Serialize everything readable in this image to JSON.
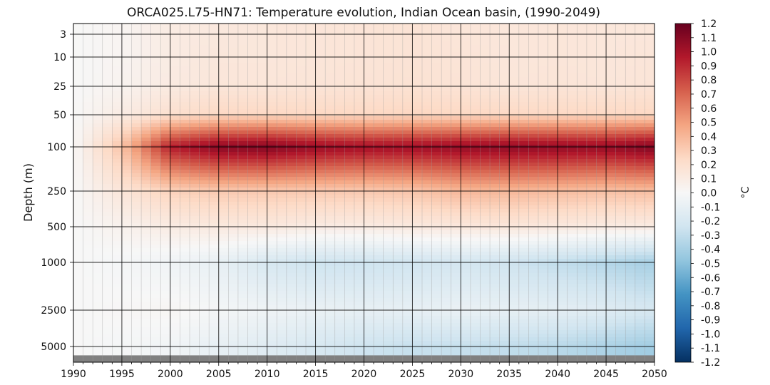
{
  "chart_data": {
    "type": "heatmap",
    "title": "ORCA025.L75-HN71: Temperature evolution, Indian Ocean basin, (1990-2049)",
    "xlabel": "",
    "ylabel": "Depth (m)",
    "xlim": [
      1990,
      2050
    ],
    "x_ticks": [
      1990,
      1995,
      2000,
      2005,
      2010,
      2015,
      2020,
      2025,
      2030,
      2035,
      2040,
      2045,
      2050
    ],
    "y_ticks": [
      3,
      10,
      25,
      50,
      100,
      250,
      500,
      1000,
      2500,
      5000
    ],
    "y_scale": "nonlinear depth (inverted)",
    "grid": true,
    "colorbar": {
      "label": "°C",
      "range": [
        -1.2,
        1.2
      ],
      "ticks": [
        "1.2",
        "1.1",
        "1.0",
        "0.9",
        "0.8",
        "0.7",
        "0.6",
        "0.5",
        "0.4",
        "0.3",
        "0.2",
        "0.1",
        "0.0",
        "-0.1",
        "-0.2",
        "-0.3",
        "-0.4",
        "-0.5",
        "-0.6",
        "-0.7",
        "-0.8",
        "-0.9",
        "-1.0",
        "-1.1",
        "-1.2"
      ],
      "colormap": "RdBu_r"
    },
    "years": [
      1990,
      1995,
      2000,
      2005,
      2010,
      2015,
      2020,
      2025,
      2030,
      2035,
      2040,
      2045,
      2049
    ],
    "depths": [
      3,
      10,
      25,
      50,
      100,
      250,
      500,
      1000,
      2500,
      5000
    ],
    "values": [
      [
        0.0,
        0.03,
        0.1,
        0.13,
        0.14,
        0.15,
        0.16,
        0.17,
        0.15,
        0.14,
        0.15,
        0.14,
        0.14
      ],
      [
        0.0,
        0.03,
        0.1,
        0.14,
        0.14,
        0.15,
        0.16,
        0.17,
        0.16,
        0.14,
        0.15,
        0.14,
        0.15
      ],
      [
        0.0,
        0.04,
        0.11,
        0.15,
        0.15,
        0.16,
        0.17,
        0.18,
        0.17,
        0.15,
        0.16,
        0.15,
        0.16
      ],
      [
        0.0,
        0.1,
        0.2,
        0.25,
        0.25,
        0.25,
        0.25,
        0.26,
        0.25,
        0.25,
        0.25,
        0.25,
        0.25
      ],
      [
        0.0,
        0.35,
        0.95,
        1.1,
        1.12,
        1.05,
        1.02,
        1.03,
        1.06,
        1.08,
        1.07,
        1.06,
        1.12
      ],
      [
        0.0,
        0.15,
        0.28,
        0.32,
        0.32,
        0.32,
        0.32,
        0.34,
        0.4,
        0.4,
        0.38,
        0.36,
        0.37
      ],
      [
        0.0,
        0.05,
        0.1,
        0.12,
        0.12,
        0.1,
        0.1,
        0.12,
        0.13,
        0.14,
        0.12,
        0.1,
        0.1
      ],
      [
        0.0,
        -0.02,
        -0.05,
        -0.1,
        -0.2,
        -0.25,
        -0.25,
        -0.24,
        -0.22,
        -0.25,
        -0.3,
        -0.35,
        -0.4
      ],
      [
        0.0,
        0.01,
        0.02,
        -0.02,
        -0.05,
        -0.08,
        -0.1,
        -0.1,
        -0.08,
        -0.1,
        -0.12,
        -0.15,
        -0.2
      ],
      [
        0.0,
        -0.02,
        -0.04,
        -0.1,
        -0.15,
        -0.2,
        -0.25,
        -0.28,
        -0.28,
        -0.3,
        -0.33,
        -0.38,
        -0.42
      ]
    ]
  }
}
